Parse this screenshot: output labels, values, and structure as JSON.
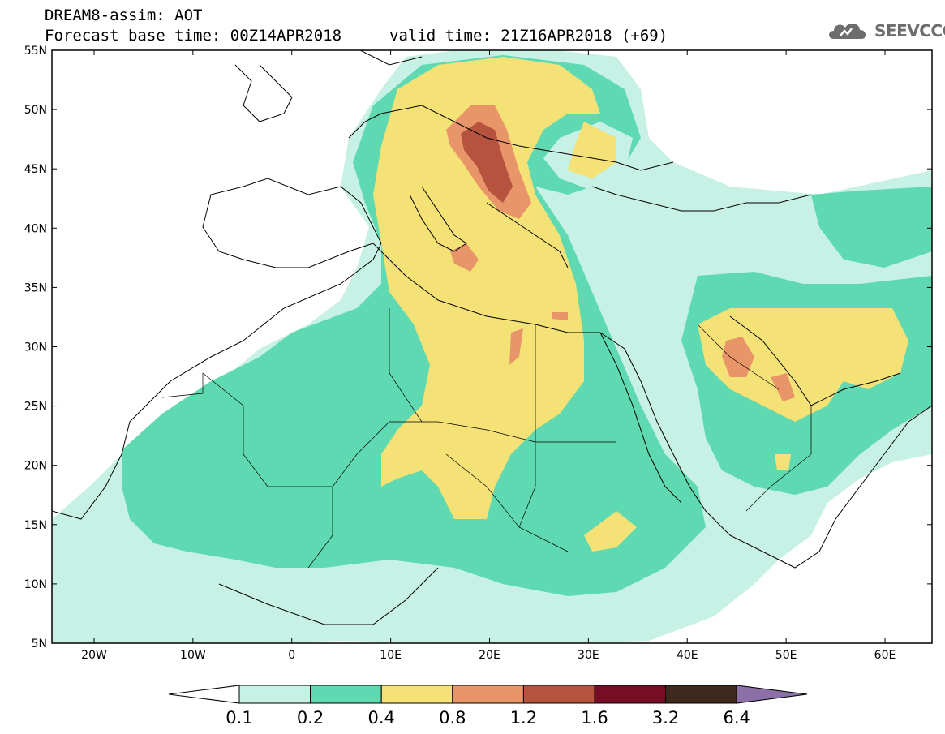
{
  "header": {
    "line1": "DREAM8-assim: AOT",
    "line2": "Forecast base time: 00Z14APR2018",
    "valid": "valid time: 21Z16APR2018 (+69)"
  },
  "logo": {
    "text": "SEEVCCC",
    "icon": "cloud-icon"
  },
  "axes": {
    "lat_labels": [
      "55N",
      "50N",
      "45N",
      "40N",
      "35N",
      "30N",
      "25N",
      "20N",
      "15N",
      "10N",
      "5N"
    ],
    "lon_labels": [
      "20W",
      "10W",
      "0",
      "10E",
      "20E",
      "30E",
      "40E",
      "50E",
      "60E"
    ]
  },
  "legend": {
    "labels": [
      "0.1",
      "0.2",
      "0.4",
      "0.8",
      "1.2",
      "1.6",
      "3.2",
      "6.4"
    ],
    "colors": [
      "#ffffff",
      "#c6f1e4",
      "#5ed9b1",
      "#f5e276",
      "#e8956a",
      "#b6533f",
      "#770d24",
      "#3d2a1d",
      "#8b6fa6"
    ]
  },
  "map_colors": {
    "c01": "#c6f1e4",
    "c02": "#5ed9b1",
    "c04": "#f5e276",
    "c08": "#e8956a",
    "c12": "#b6533f"
  }
}
